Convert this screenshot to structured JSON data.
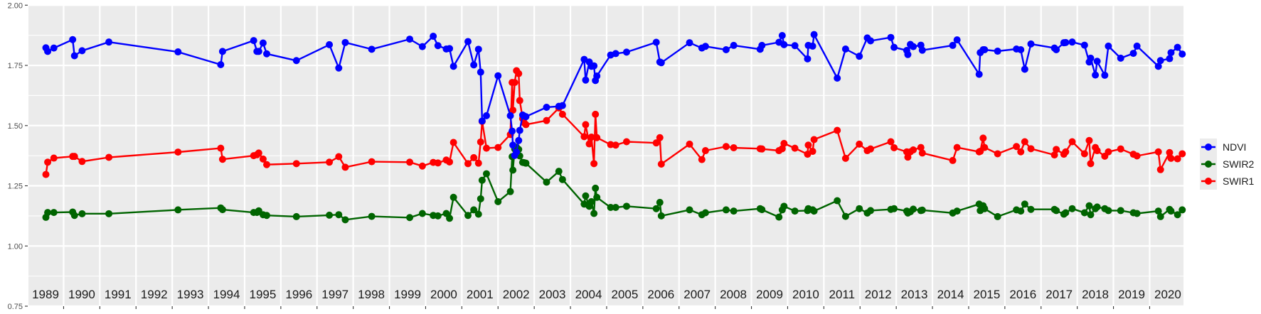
{
  "chart_data": {
    "type": "line",
    "title": "",
    "xlabel": "",
    "ylabel": "",
    "ylim": [
      0.75,
      2.0
    ],
    "xlim": [
      1989.03,
      2020.91
    ],
    "yticks": [
      "0.75",
      "1.00",
      "1.25",
      "1.50",
      "1.75",
      "2.00"
    ],
    "ytick_values": [
      0.75,
      1.0,
      1.25,
      1.5,
      1.75,
      2.0
    ],
    "year_labels": [
      "1989",
      "1990",
      "1991",
      "1992",
      "1993",
      "1994",
      "1995",
      "1996",
      "1997",
      "1998",
      "1999",
      "2000",
      "2001",
      "2002",
      "2003",
      "2004",
      "2005",
      "2006",
      "2007",
      "2008",
      "2009",
      "2010",
      "2011",
      "2012",
      "2013",
      "2014",
      "2015",
      "2016",
      "2017",
      "2018",
      "2019",
      "2020"
    ],
    "grid": true,
    "legend_position": "right",
    "x": [
      1989.51,
      1989.56,
      1989.73,
      1990.25,
      1990.3,
      1990.51,
      1991.25,
      1993.16,
      1994.34,
      1994.39,
      1995.25,
      1995.34,
      1995.39,
      1995.51,
      1995.61,
      1996.43,
      1997.34,
      1997.6,
      1997.78,
      1998.51,
      1999.56,
      1999.91,
      2000.21,
      2000.34,
      2000.57,
      2000.66,
      2000.77,
      2001.17,
      2001.33,
      2001.46,
      2001.52,
      2001.56,
      2001.68,
      2002.0,
      2002.34,
      2002.39,
      2002.41,
      2002.46,
      2002.51,
      2002.57,
      2002.6,
      2002.68,
      2002.72,
      2002.77,
      2003.34,
      2003.68,
      2003.78,
      2004.38,
      2004.42,
      2004.52,
      2004.58,
      2004.65,
      2004.69,
      2004.73,
      2005.11,
      2005.25,
      2005.55,
      2006.37,
      2006.47,
      2006.51,
      2007.29,
      2007.63,
      2007.73,
      2008.3,
      2008.51,
      2009.24,
      2009.29,
      2009.76,
      2009.85,
      2009.9,
      2010.2,
      2010.55,
      2010.57,
      2010.69,
      2010.73,
      2011.37,
      2011.6,
      2011.98,
      2012.2,
      2012.29,
      2012.85,
      2012.94,
      2013.29,
      2013.32,
      2013.39,
      2013.47,
      2013.68,
      2013.72,
      2014.56,
      2014.68,
      2015.29,
      2015.32,
      2015.4,
      2015.44,
      2015.8,
      2016.32,
      2016.44,
      2016.55,
      2016.72,
      2017.37,
      2017.42,
      2017.63,
      2017.68,
      2017.86,
      2018.2,
      2018.33,
      2018.37,
      2018.5,
      2018.55,
      2018.76,
      2018.86,
      2019.2,
      2019.55,
      2019.65,
      2020.24,
      2020.3,
      2020.55,
      2020.59,
      2020.77,
      2020.9
    ],
    "series": [
      {
        "name": "NDVI",
        "color": "#0000ff",
        "values": [
          1.823,
          1.808,
          1.822,
          1.857,
          1.79,
          1.811,
          1.847,
          1.806,
          1.753,
          1.808,
          1.853,
          1.808,
          1.808,
          1.843,
          1.798,
          1.77,
          1.836,
          1.739,
          1.845,
          1.817,
          1.859,
          1.828,
          1.871,
          1.832,
          1.818,
          1.82,
          1.746,
          1.849,
          1.752,
          1.817,
          1.722,
          1.519,
          1.541,
          1.707,
          1.541,
          1.477,
          1.419,
          1.376,
          1.39,
          1.438,
          1.48,
          1.544,
          1.54,
          1.537,
          1.576,
          1.58,
          1.583,
          1.775,
          1.689,
          1.764,
          1.746,
          1.748,
          1.687,
          1.706,
          1.793,
          1.799,
          1.805,
          1.846,
          1.764,
          1.761,
          1.844,
          1.822,
          1.829,
          1.815,
          1.833,
          1.817,
          1.833,
          1.846,
          1.874,
          1.836,
          1.832,
          1.777,
          1.833,
          1.83,
          1.878,
          1.697,
          1.818,
          1.788,
          1.864,
          1.852,
          1.866,
          1.825,
          1.812,
          1.795,
          1.837,
          1.828,
          1.834,
          1.813,
          1.833,
          1.856,
          1.713,
          1.803,
          1.815,
          1.815,
          1.809,
          1.818,
          1.815,
          1.734,
          1.839,
          1.822,
          1.815,
          1.844,
          1.845,
          1.847,
          1.834,
          1.764,
          1.78,
          1.71,
          1.767,
          1.709,
          1.83,
          1.78,
          1.8,
          1.83,
          1.746,
          1.77,
          1.778,
          1.803,
          1.825,
          1.797
        ]
      },
      {
        "name": "SWIR2",
        "color": "#006400",
        "values": [
          1.119,
          1.139,
          1.139,
          1.141,
          1.127,
          1.134,
          1.134,
          1.15,
          1.158,
          1.151,
          1.139,
          1.139,
          1.146,
          1.13,
          1.127,
          1.122,
          1.128,
          1.13,
          1.109,
          1.123,
          1.118,
          1.135,
          1.127,
          1.125,
          1.135,
          1.115,
          1.202,
          1.127,
          1.15,
          1.132,
          1.196,
          1.273,
          1.3,
          1.184,
          1.226,
          1.371,
          1.315,
          1.403,
          1.41,
          1.401,
          1.374,
          1.347,
          1.346,
          1.344,
          1.265,
          1.31,
          1.276,
          1.174,
          1.208,
          1.165,
          1.184,
          1.135,
          1.24,
          1.202,
          1.16,
          1.16,
          1.165,
          1.155,
          1.181,
          1.125,
          1.15,
          1.13,
          1.138,
          1.15,
          1.145,
          1.155,
          1.151,
          1.12,
          1.15,
          1.165,
          1.145,
          1.147,
          1.155,
          1.15,
          1.145,
          1.188,
          1.123,
          1.155,
          1.137,
          1.147,
          1.152,
          1.155,
          1.145,
          1.137,
          1.142,
          1.153,
          1.147,
          1.149,
          1.137,
          1.145,
          1.174,
          1.147,
          1.167,
          1.155,
          1.122,
          1.15,
          1.145,
          1.174,
          1.152,
          1.152,
          1.147,
          1.132,
          1.138,
          1.155,
          1.138,
          1.167,
          1.13,
          1.155,
          1.162,
          1.155,
          1.147,
          1.147,
          1.138,
          1.135,
          1.145,
          1.122,
          1.152,
          1.145,
          1.13,
          1.15
        ]
      },
      {
        "name": "SWIR1",
        "color": "#ff0000",
        "values": [
          1.297,
          1.348,
          1.365,
          1.372,
          1.372,
          1.351,
          1.368,
          1.39,
          1.406,
          1.36,
          1.375,
          1.379,
          1.386,
          1.361,
          1.338,
          1.342,
          1.348,
          1.371,
          1.327,
          1.35,
          1.348,
          1.332,
          1.347,
          1.345,
          1.357,
          1.349,
          1.43,
          1.342,
          1.367,
          1.344,
          1.432,
          1.517,
          1.406,
          1.409,
          1.463,
          1.679,
          1.564,
          1.679,
          1.728,
          1.716,
          1.604,
          1.529,
          1.512,
          1.504,
          1.521,
          1.573,
          1.547,
          1.454,
          1.504,
          1.424,
          1.452,
          1.342,
          1.547,
          1.45,
          1.421,
          1.419,
          1.433,
          1.428,
          1.45,
          1.34,
          1.423,
          1.359,
          1.396,
          1.413,
          1.408,
          1.404,
          1.403,
          1.396,
          1.404,
          1.426,
          1.406,
          1.381,
          1.419,
          1.393,
          1.442,
          1.48,
          1.364,
          1.423,
          1.396,
          1.403,
          1.433,
          1.408,
          1.391,
          1.369,
          1.391,
          1.399,
          1.409,
          1.386,
          1.355,
          1.409,
          1.391,
          1.393,
          1.448,
          1.409,
          1.383,
          1.413,
          1.391,
          1.433,
          1.404,
          1.378,
          1.401,
          1.381,
          1.391,
          1.433,
          1.383,
          1.438,
          1.342,
          1.409,
          1.396,
          1.373,
          1.391,
          1.403,
          1.381,
          1.374,
          1.391,
          1.317,
          1.388,
          1.364,
          1.362,
          1.383
        ]
      }
    ]
  }
}
